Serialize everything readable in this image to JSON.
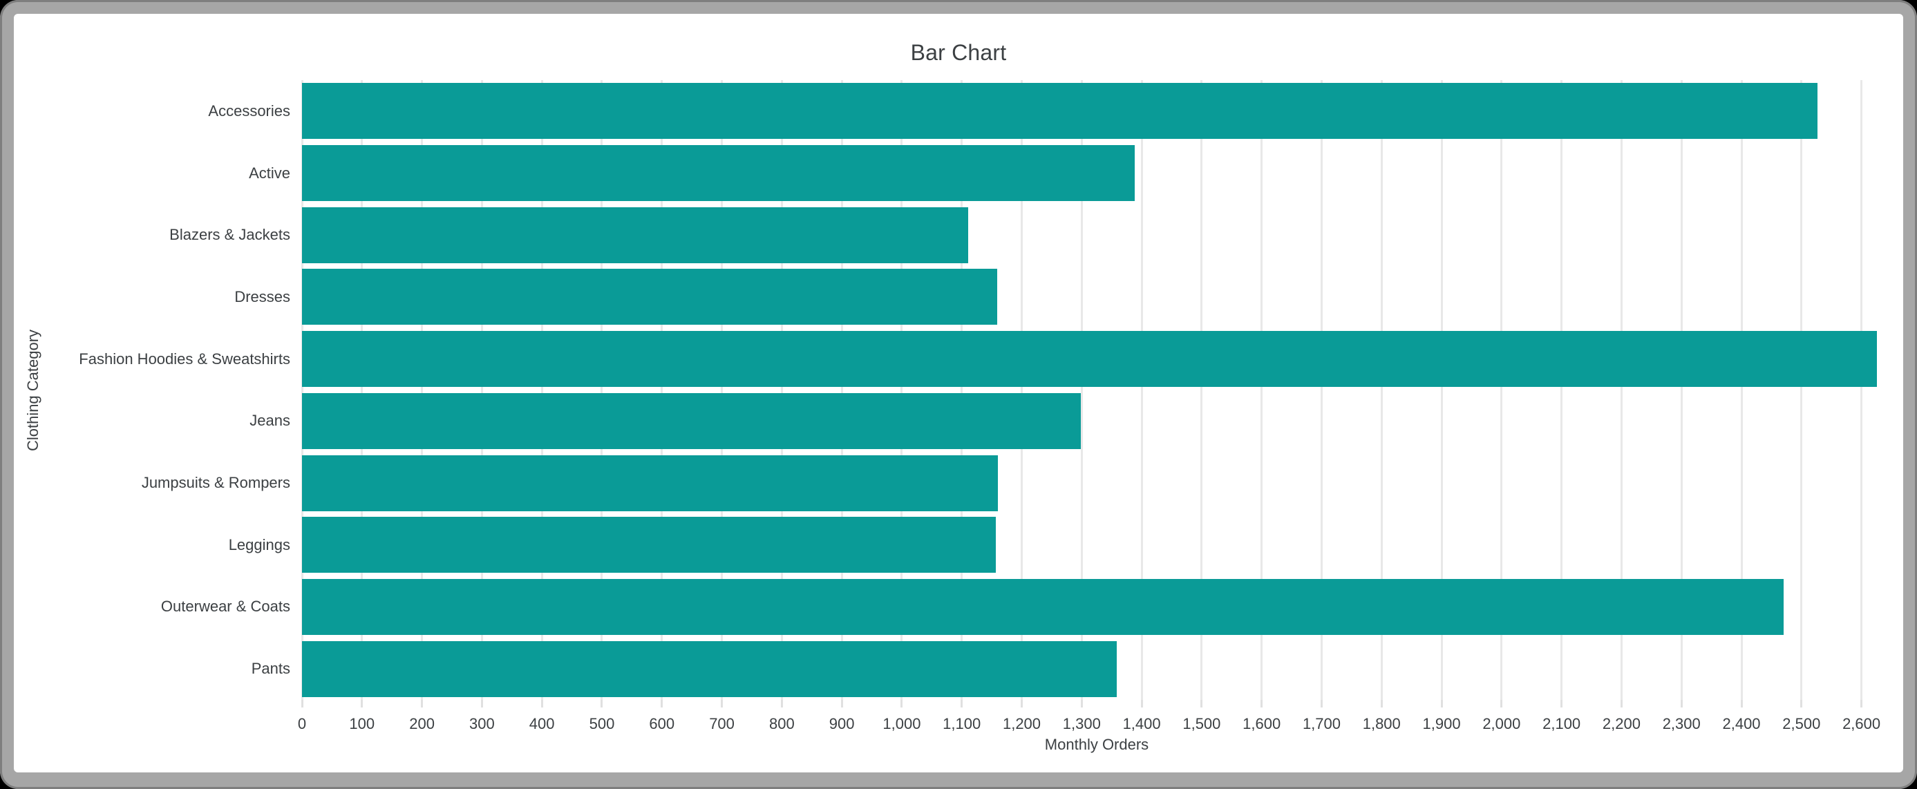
{
  "window": {
    "frame_color": "#a6a6a6",
    "background_color": "#ffffff"
  },
  "chart_data": {
    "type": "bar",
    "orientation": "horizontal",
    "title": "Bar Chart",
    "xlabel": "Monthly Orders",
    "ylabel": "Clothing Category",
    "categories": [
      "Accessories",
      "Active",
      "Blazers & Jackets",
      "Dresses",
      "Fashion Hoodies & Sweatshirts",
      "Jeans",
      "Jumpsuits & Rompers",
      "Leggings",
      "Outerwear & Coats",
      "Pants"
    ],
    "values": [
      2527,
      1388,
      1111,
      1159,
      2626,
      1298,
      1160,
      1157,
      2470,
      1358
    ],
    "xlim": [
      0,
      2650
    ],
    "x_tick_interval": 100,
    "x_tick_min": 0,
    "x_tick_max": 2600,
    "x_tick_label_format": "thousands-comma",
    "grid": true,
    "legend": false,
    "bar_color": "#0a9b97",
    "grid_color": "#e8e8e8",
    "text_color": "#3c4043"
  }
}
